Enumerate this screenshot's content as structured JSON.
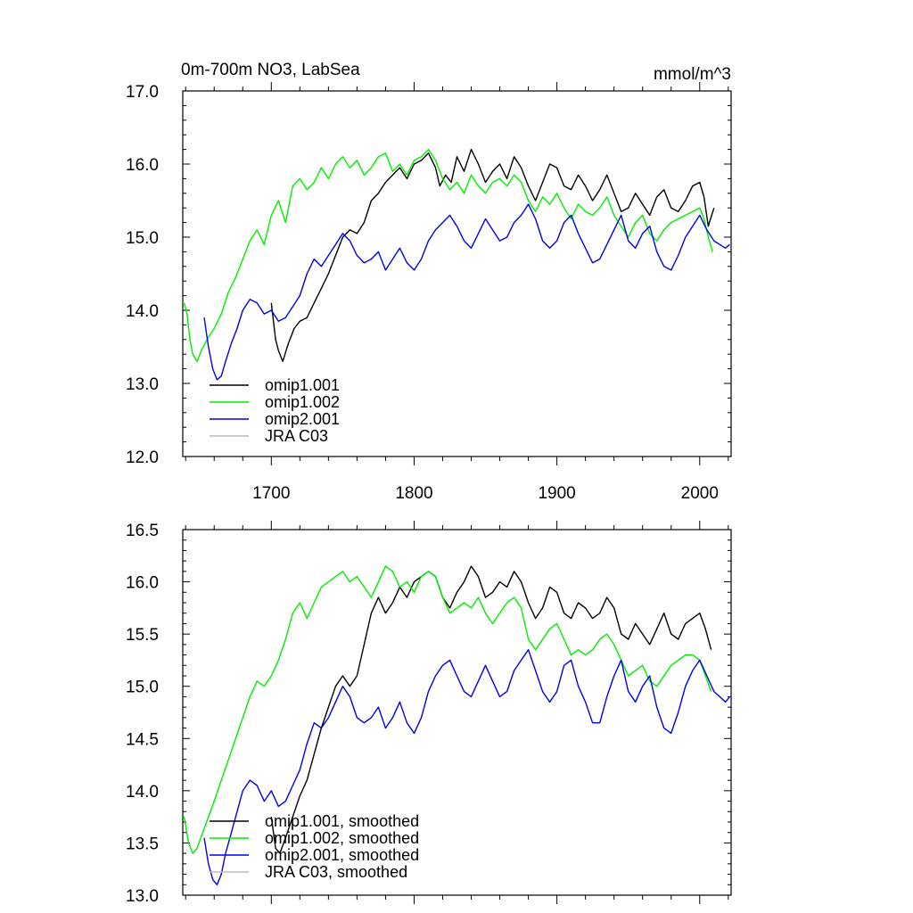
{
  "figure": {
    "title_left": "0m-700m NO3, LabSea",
    "title_right": "mmol/m^3"
  },
  "colors": {
    "omip1_001": "#000000",
    "omip1_002": "#00ee00",
    "omip2_001": "#0000ee",
    "jra_c03": "#bbbbbb"
  },
  "chart_data": [
    {
      "type": "line",
      "title": "0m-700m NO3, LabSea",
      "units": "mmol/m^3",
      "xlim": [
        1638,
        2022
      ],
      "ylim": [
        12.0,
        17.0
      ],
      "x_ticks": [
        1700,
        1800,
        1900,
        2000
      ],
      "x_tick_labels": [
        "1700",
        "1800",
        "1900",
        "2000"
      ],
      "y_ticks": [
        12.0,
        13.0,
        14.0,
        15.0,
        16.0,
        17.0
      ],
      "y_tick_labels": [
        "12.0",
        "13.0",
        "14.0",
        "15.0",
        "16.0",
        "17.0"
      ],
      "legend": [
        "omip1.001",
        "omip1.002",
        "omip2.001",
        "JRA C03"
      ],
      "series": [
        {
          "name": "omip1.001",
          "color_key": "omip1_001",
          "x": [
            1700,
            1703,
            1705,
            1708,
            1712,
            1716,
            1720,
            1725,
            1730,
            1735,
            1740,
            1745,
            1750,
            1755,
            1760,
            1765,
            1770,
            1775,
            1780,
            1785,
            1790,
            1795,
            1800,
            1805,
            1810,
            1815,
            1818,
            1822,
            1826,
            1830,
            1835,
            1840,
            1845,
            1850,
            1855,
            1860,
            1865,
            1870,
            1875,
            1880,
            1885,
            1890,
            1895,
            1900,
            1905,
            1910,
            1915,
            1920,
            1925,
            1930,
            1935,
            1940,
            1945,
            1950,
            1955,
            1960,
            1965,
            1970,
            1975,
            1980,
            1985,
            1990,
            1995,
            2000,
            2003,
            2006,
            2010
          ],
          "values": [
            14.1,
            13.6,
            13.45,
            13.3,
            13.55,
            13.75,
            13.85,
            13.9,
            14.1,
            14.3,
            14.5,
            14.75,
            15.0,
            15.1,
            15.05,
            15.2,
            15.5,
            15.6,
            15.75,
            15.85,
            15.95,
            15.8,
            16.0,
            16.05,
            16.15,
            15.95,
            15.7,
            15.85,
            15.75,
            16.1,
            15.9,
            16.2,
            16.0,
            15.75,
            15.9,
            16.0,
            15.8,
            16.1,
            15.95,
            15.7,
            15.5,
            15.75,
            16.0,
            15.95,
            15.7,
            15.65,
            15.85,
            15.7,
            15.5,
            15.65,
            15.85,
            15.6,
            15.35,
            15.4,
            15.6,
            15.45,
            15.3,
            15.55,
            15.65,
            15.4,
            15.35,
            15.5,
            15.7,
            15.75,
            15.55,
            15.15,
            15.4
          ]
        },
        {
          "name": "omip1.002",
          "color_key": "omip1_002",
          "x": [
            1639,
            1641,
            1643,
            1645,
            1648,
            1651,
            1655,
            1660,
            1665,
            1670,
            1675,
            1680,
            1685,
            1690,
            1695,
            1700,
            1705,
            1710,
            1715,
            1720,
            1725,
            1730,
            1735,
            1740,
            1745,
            1750,
            1755,
            1760,
            1765,
            1770,
            1775,
            1780,
            1785,
            1790,
            1795,
            1800,
            1805,
            1810,
            1815,
            1820,
            1825,
            1830,
            1835,
            1840,
            1845,
            1850,
            1855,
            1860,
            1865,
            1870,
            1875,
            1880,
            1885,
            1890,
            1895,
            1900,
            1905,
            1910,
            1915,
            1920,
            1925,
            1930,
            1935,
            1940,
            1945,
            1950,
            1955,
            1960,
            1965,
            1970,
            1975,
            1980,
            1985,
            1990,
            1995,
            2000,
            2003,
            2006,
            2009
          ],
          "values": [
            14.1,
            13.95,
            13.6,
            13.4,
            13.3,
            13.45,
            13.6,
            13.75,
            13.95,
            14.25,
            14.45,
            14.7,
            14.95,
            15.1,
            14.9,
            15.3,
            15.5,
            15.2,
            15.7,
            15.8,
            15.65,
            15.75,
            15.95,
            15.8,
            16.0,
            16.1,
            15.95,
            16.05,
            15.85,
            15.95,
            16.1,
            16.15,
            15.9,
            16.0,
            15.85,
            16.05,
            16.1,
            16.2,
            16.05,
            15.8,
            15.65,
            15.75,
            15.6,
            15.85,
            15.7,
            15.6,
            15.75,
            15.8,
            15.7,
            15.85,
            15.75,
            15.5,
            15.35,
            15.55,
            15.45,
            15.6,
            15.4,
            15.25,
            15.45,
            15.35,
            15.3,
            15.4,
            15.55,
            15.3,
            15.15,
            15.0,
            15.2,
            15.3,
            15.05,
            14.95,
            15.1,
            15.2,
            15.25,
            15.3,
            15.35,
            15.4,
            15.25,
            15.0,
            14.8
          ]
        },
        {
          "name": "omip2.001",
          "color_key": "omip2_001",
          "x": [
            1653,
            1656,
            1659,
            1662,
            1665,
            1668,
            1672,
            1676,
            1680,
            1685,
            1690,
            1695,
            1700,
            1705,
            1710,
            1715,
            1720,
            1725,
            1730,
            1735,
            1740,
            1745,
            1750,
            1755,
            1760,
            1765,
            1770,
            1775,
            1780,
            1785,
            1790,
            1795,
            1800,
            1805,
            1810,
            1815,
            1820,
            1825,
            1830,
            1835,
            1840,
            1845,
            1850,
            1855,
            1860,
            1865,
            1870,
            1875,
            1880,
            1885,
            1890,
            1895,
            1900,
            1905,
            1910,
            1915,
            1920,
            1925,
            1930,
            1935,
            1940,
            1945,
            1950,
            1955,
            1960,
            1965,
            1970,
            1975,
            1980,
            1985,
            1990,
            1995,
            2000,
            2005,
            2010,
            2014,
            2018,
            2021
          ],
          "values": [
            13.9,
            13.5,
            13.2,
            13.05,
            13.1,
            13.3,
            13.55,
            13.75,
            14.0,
            14.15,
            14.1,
            13.95,
            14.0,
            13.85,
            13.9,
            14.05,
            14.2,
            14.5,
            14.7,
            14.6,
            14.75,
            14.9,
            15.05,
            14.95,
            14.75,
            14.65,
            14.7,
            14.8,
            14.55,
            14.7,
            14.85,
            14.65,
            14.55,
            14.7,
            14.95,
            15.1,
            15.2,
            15.3,
            15.15,
            14.95,
            14.85,
            15.05,
            15.25,
            15.1,
            14.95,
            15.0,
            15.2,
            15.3,
            15.45,
            15.25,
            14.95,
            14.85,
            14.95,
            15.2,
            15.3,
            15.05,
            14.85,
            14.65,
            14.7,
            14.9,
            15.1,
            15.3,
            14.95,
            14.85,
            15.05,
            15.15,
            14.8,
            14.6,
            14.55,
            14.75,
            15.0,
            15.15,
            15.3,
            15.1,
            14.95,
            14.9,
            14.85,
            14.9
          ]
        }
      ]
    },
    {
      "type": "line",
      "title": "",
      "xlim": [
        1638,
        2022
      ],
      "ylim": [
        13.0,
        16.5
      ],
      "x_ticks": [
        1700,
        1800,
        1900,
        2000
      ],
      "x_tick_labels": [],
      "y_ticks": [
        13.0,
        13.5,
        14.0,
        14.5,
        15.0,
        15.5,
        16.0,
        16.5
      ],
      "y_tick_labels": [
        "13.0",
        "13.5",
        "14.0",
        "14.5",
        "15.0",
        "15.5",
        "16.0",
        "16.5"
      ],
      "legend": [
        "omip1.001, smoothed",
        "omip1.002, smoothed",
        "omip2.001, smoothed",
        "JRA C03, smoothed"
      ],
      "series": [
        {
          "name": "omip1.001, smoothed",
          "color_key": "omip1_001",
          "x": [
            1700,
            1703,
            1706,
            1710,
            1715,
            1720,
            1725,
            1730,
            1735,
            1740,
            1745,
            1750,
            1755,
            1760,
            1765,
            1770,
            1775,
            1780,
            1785,
            1790,
            1795,
            1800,
            1805,
            1810,
            1815,
            1820,
            1825,
            1830,
            1835,
            1840,
            1845,
            1850,
            1855,
            1860,
            1865,
            1870,
            1875,
            1880,
            1885,
            1890,
            1895,
            1900,
            1905,
            1910,
            1915,
            1920,
            1925,
            1930,
            1935,
            1940,
            1945,
            1950,
            1955,
            1960,
            1965,
            1970,
            1975,
            1980,
            1985,
            1990,
            1995,
            2000,
            2004,
            2008
          ],
          "values": [
            13.75,
            13.45,
            13.4,
            13.55,
            13.75,
            13.95,
            14.1,
            14.35,
            14.6,
            14.8,
            15.0,
            15.1,
            15.0,
            15.1,
            15.4,
            15.7,
            15.85,
            15.7,
            15.8,
            15.95,
            15.85,
            16.0,
            16.05,
            16.1,
            16.05,
            15.85,
            15.75,
            15.9,
            16.0,
            16.15,
            16.05,
            15.85,
            15.9,
            16.0,
            15.95,
            16.1,
            16.0,
            15.8,
            15.65,
            15.75,
            15.95,
            15.9,
            15.7,
            15.65,
            15.8,
            15.75,
            15.65,
            15.7,
            15.85,
            15.75,
            15.5,
            15.45,
            15.6,
            15.5,
            15.4,
            15.55,
            15.7,
            15.5,
            15.45,
            15.6,
            15.65,
            15.7,
            15.55,
            15.35
          ]
        },
        {
          "name": "omip1.002, smoothed",
          "color_key": "omip1_002",
          "x": [
            1639,
            1642,
            1645,
            1648,
            1652,
            1656,
            1660,
            1665,
            1670,
            1675,
            1680,
            1685,
            1690,
            1695,
            1700,
            1705,
            1710,
            1715,
            1720,
            1725,
            1730,
            1735,
            1740,
            1745,
            1750,
            1755,
            1760,
            1765,
            1770,
            1775,
            1780,
            1785,
            1790,
            1795,
            1800,
            1805,
            1810,
            1815,
            1820,
            1825,
            1830,
            1835,
            1840,
            1845,
            1850,
            1855,
            1860,
            1865,
            1870,
            1875,
            1880,
            1885,
            1890,
            1895,
            1900,
            1905,
            1910,
            1915,
            1920,
            1925,
            1930,
            1935,
            1940,
            1945,
            1950,
            1955,
            1960,
            1965,
            1970,
            1975,
            1980,
            1985,
            1990,
            1995,
            2000,
            2004,
            2008
          ],
          "values": [
            13.75,
            13.5,
            13.4,
            13.45,
            13.6,
            13.75,
            13.9,
            14.1,
            14.3,
            14.5,
            14.7,
            14.9,
            15.05,
            15.0,
            15.1,
            15.25,
            15.45,
            15.7,
            15.8,
            15.65,
            15.8,
            15.95,
            16.0,
            16.05,
            16.1,
            16.0,
            16.05,
            15.95,
            15.85,
            16.0,
            16.15,
            16.1,
            15.95,
            16.0,
            15.9,
            16.05,
            16.1,
            16.05,
            15.85,
            15.7,
            15.75,
            15.8,
            15.75,
            15.85,
            15.7,
            15.6,
            15.7,
            15.8,
            15.85,
            15.75,
            15.45,
            15.35,
            15.45,
            15.55,
            15.6,
            15.45,
            15.3,
            15.35,
            15.3,
            15.35,
            15.45,
            15.5,
            15.4,
            15.25,
            15.1,
            15.15,
            15.2,
            15.05,
            15.0,
            15.1,
            15.2,
            15.25,
            15.3,
            15.3,
            15.25,
            15.1,
            14.95
          ]
        },
        {
          "name": "omip2.001, smoothed",
          "color_key": "omip2_001",
          "x": [
            1653,
            1656,
            1659,
            1662,
            1665,
            1668,
            1672,
            1676,
            1680,
            1685,
            1690,
            1695,
            1700,
            1705,
            1710,
            1715,
            1720,
            1725,
            1730,
            1735,
            1740,
            1745,
            1750,
            1755,
            1760,
            1765,
            1770,
            1775,
            1780,
            1785,
            1790,
            1795,
            1800,
            1805,
            1810,
            1815,
            1820,
            1825,
            1830,
            1835,
            1840,
            1845,
            1850,
            1855,
            1860,
            1865,
            1870,
            1875,
            1880,
            1885,
            1890,
            1895,
            1900,
            1905,
            1910,
            1915,
            1920,
            1925,
            1930,
            1935,
            1940,
            1945,
            1950,
            1955,
            1960,
            1965,
            1970,
            1975,
            1980,
            1985,
            1990,
            1995,
            2000,
            2005,
            2010,
            2014,
            2018,
            2021
          ],
          "values": [
            13.55,
            13.3,
            13.15,
            13.1,
            13.2,
            13.4,
            13.6,
            13.8,
            14.0,
            14.1,
            14.05,
            13.9,
            14.0,
            13.85,
            13.9,
            14.05,
            14.2,
            14.45,
            14.65,
            14.6,
            14.7,
            14.85,
            15.0,
            14.9,
            14.7,
            14.65,
            14.7,
            14.8,
            14.6,
            14.7,
            14.85,
            14.65,
            14.55,
            14.7,
            14.95,
            15.1,
            15.2,
            15.25,
            15.1,
            14.95,
            14.9,
            15.05,
            15.2,
            15.05,
            14.9,
            14.95,
            15.15,
            15.25,
            15.35,
            15.15,
            14.95,
            14.85,
            14.95,
            15.2,
            15.25,
            15.0,
            14.85,
            14.65,
            14.65,
            14.9,
            15.1,
            15.25,
            14.95,
            14.85,
            15.0,
            15.1,
            14.8,
            14.6,
            14.55,
            14.75,
            15.0,
            15.15,
            15.25,
            15.1,
            14.95,
            14.9,
            14.85,
            14.9
          ]
        }
      ]
    }
  ]
}
